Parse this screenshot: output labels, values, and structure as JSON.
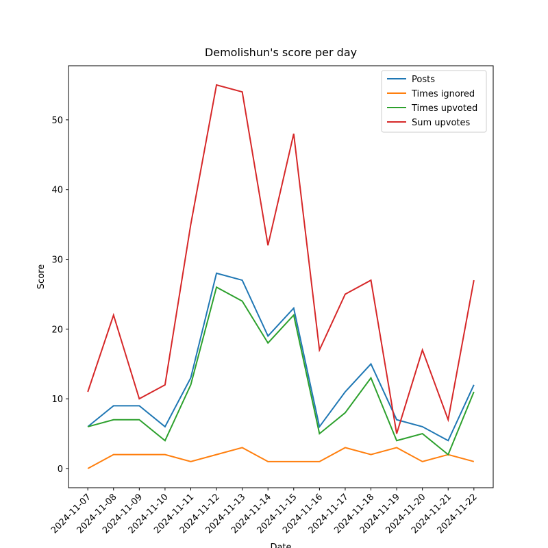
{
  "chart_data": {
    "type": "line",
    "title": "Demolishun's score per day",
    "x_label": "Date",
    "y_label": "Score",
    "categories": [
      "2024-11-07",
      "2024-11-08",
      "2024-11-09",
      "2024-11-10",
      "2024-11-11",
      "2024-11-12",
      "2024-11-13",
      "2024-11-14",
      "2024-11-15",
      "2024-11-16",
      "2024-11-17",
      "2024-11-18",
      "2024-11-19",
      "2024-11-20",
      "2024-11-21",
      "2024-11-22"
    ],
    "series": [
      {
        "name": "Posts",
        "color": "#1f77b4",
        "values": [
          6,
          9,
          9,
          6,
          13,
          28,
          27,
          19,
          23,
          6,
          11,
          15,
          7,
          6,
          4,
          12
        ]
      },
      {
        "name": "Times ignored",
        "color": "#ff7f0e",
        "values": [
          0,
          2,
          2,
          2,
          1,
          2,
          3,
          1,
          1,
          1,
          3,
          2,
          3,
          1,
          2,
          1
        ]
      },
      {
        "name": "Times upvoted",
        "color": "#2ca02c",
        "values": [
          6,
          7,
          7,
          4,
          12,
          26,
          24,
          18,
          22,
          5,
          8,
          13,
          4,
          5,
          2,
          11
        ]
      },
      {
        "name": "Sum upvotes",
        "color": "#d62728",
        "values": [
          11,
          22,
          10,
          12,
          35,
          55,
          54,
          32,
          48,
          17,
          25,
          27,
          5,
          17,
          7,
          27
        ]
      }
    ],
    "ylim": [
      -2.75,
      57.75
    ],
    "yticks": [
      0,
      10,
      20,
      30,
      40,
      50
    ],
    "legend": "upper right"
  }
}
